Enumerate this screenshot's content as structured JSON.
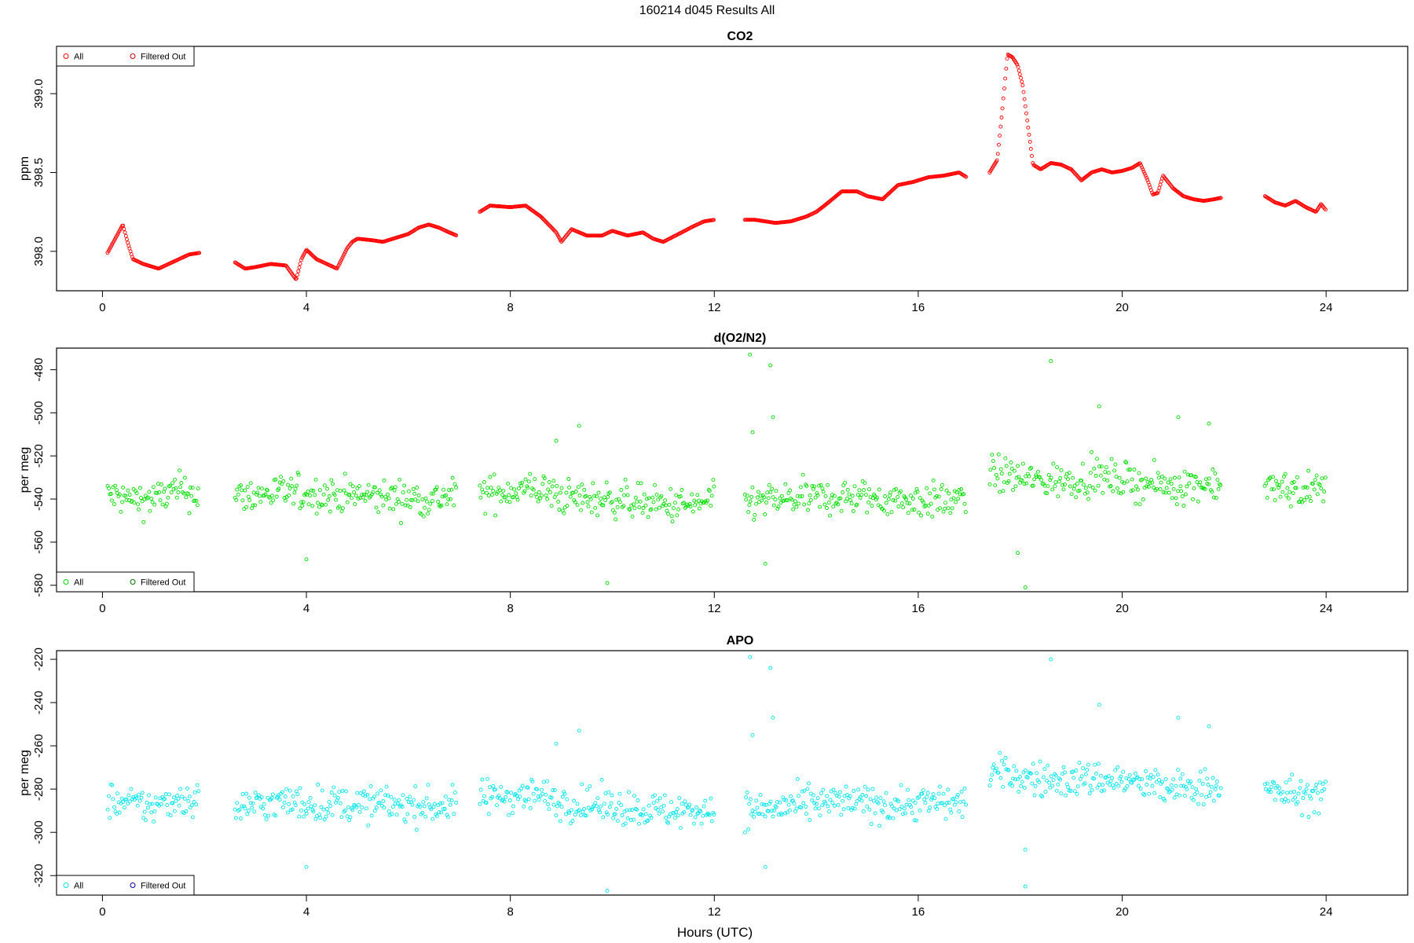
{
  "figure": {
    "title": "160214   d045   Results All",
    "xlabel": "Hours (UTC)"
  },
  "chart_data": [
    {
      "type": "scatter",
      "title": "CO2",
      "ylabel": "ppm",
      "xlim": [
        -0.9,
        25.6
      ],
      "ylim": [
        397.75,
        399.3
      ],
      "xticks": [
        0,
        4,
        8,
        12,
        16,
        20,
        24
      ],
      "yticks": [
        398.0,
        398.5,
        399.0
      ],
      "ytick_labels": [
        "398.0",
        "398.5",
        "399.0"
      ],
      "grid": false,
      "legend": {
        "position": "top-left",
        "entries": [
          {
            "label": "All",
            "color": "#ff0000"
          },
          {
            "label": "Filtered Out",
            "color": "#cc0000"
          }
        ]
      },
      "series": [
        {
          "name": "All",
          "color": "#ff0000",
          "segments": [
            {
              "x": [
                0.1,
                0.25,
                0.4,
                0.5,
                0.6,
                0.8,
                1.0,
                1.1,
                1.3,
                1.5,
                1.7,
                1.9
              ],
              "y": [
                397.99,
                398.08,
                398.17,
                398.05,
                397.95,
                397.92,
                397.9,
                397.89,
                397.92,
                397.95,
                397.98,
                397.99
              ]
            },
            {
              "x": [
                2.6,
                2.8,
                3.0,
                3.3,
                3.6,
                3.8,
                3.9,
                4.0,
                4.2,
                4.4,
                4.6,
                4.8,
                4.9,
                5.0,
                5.3,
                5.5,
                5.8,
                6.0,
                6.2,
                6.4,
                6.6,
                6.8,
                6.95
              ],
              "y": [
                397.93,
                397.89,
                397.9,
                397.92,
                397.91,
                397.82,
                397.95,
                398.01,
                397.95,
                397.92,
                397.89,
                398.02,
                398.06,
                398.08,
                398.07,
                398.06,
                398.09,
                398.11,
                398.15,
                398.17,
                398.15,
                398.12,
                398.1
              ]
            },
            {
              "x": [
                7.4,
                7.6,
                8.0,
                8.3,
                8.6,
                8.9,
                9.0,
                9.2,
                9.5,
                9.8,
                10.0,
                10.3,
                10.6,
                10.8,
                11.0,
                11.3,
                11.6,
                11.8,
                12.0
              ],
              "y": [
                398.25,
                398.29,
                398.28,
                398.29,
                398.22,
                398.12,
                398.06,
                398.14,
                398.1,
                398.1,
                398.13,
                398.1,
                398.12,
                398.08,
                398.06,
                398.11,
                398.16,
                398.19,
                398.2
              ]
            },
            {
              "x": [
                12.6,
                12.8,
                13.0,
                13.2,
                13.5,
                13.8,
                14.0,
                14.2,
                14.5,
                14.8,
                15.0,
                15.3,
                15.6,
                15.9,
                16.2,
                16.5,
                16.8,
                16.95
              ],
              "y": [
                398.2,
                398.2,
                398.19,
                398.18,
                398.19,
                398.22,
                398.25,
                398.3,
                398.38,
                398.38,
                398.35,
                398.33,
                398.42,
                398.44,
                398.47,
                398.48,
                398.5,
                398.47
              ]
            },
            {
              "x": [
                17.4,
                17.55,
                17.65,
                17.75,
                17.85,
                17.95,
                18.05,
                18.15,
                18.25,
                18.4,
                18.6,
                18.8,
                19.0,
                19.2,
                19.4,
                19.6,
                19.8,
                20.0,
                20.2,
                20.35,
                20.5,
                20.6,
                20.7,
                20.8,
                21.0,
                21.2,
                21.4,
                21.6,
                21.8,
                21.95
              ],
              "y": [
                398.5,
                398.58,
                398.9,
                399.25,
                399.23,
                399.18,
                399.05,
                398.8,
                398.55,
                398.52,
                398.56,
                398.55,
                398.52,
                398.45,
                398.5,
                398.52,
                398.5,
                398.51,
                398.53,
                398.56,
                398.45,
                398.36,
                398.37,
                398.48,
                398.4,
                398.35,
                398.33,
                398.32,
                398.33,
                398.34
              ]
            },
            {
              "x": [
                22.8,
                23.0,
                23.2,
                23.4,
                23.6,
                23.8,
                23.9,
                24.0
              ],
              "y": [
                398.35,
                398.31,
                398.29,
                398.32,
                398.28,
                398.25,
                398.3,
                398.26
              ]
            }
          ]
        }
      ]
    },
    {
      "type": "scatter",
      "title": "d(O2/N2)",
      "ylabel": "per meg",
      "xlim": [
        -0.9,
        25.6
      ],
      "ylim": [
        -583,
        -470
      ],
      "xticks": [
        0,
        4,
        8,
        12,
        16,
        20,
        24
      ],
      "yticks": [
        -580,
        -560,
        -540,
        -520,
        -500,
        -480
      ],
      "ytick_labels": [
        "-580",
        "-560",
        "-540",
        "-520",
        "-500",
        "-480"
      ],
      "grid": false,
      "legend": {
        "position": "bottom-left",
        "entries": [
          {
            "label": "All",
            "color": "#00dd00"
          },
          {
            "label": "Filtered Out",
            "color": "#007700"
          }
        ]
      },
      "series": [
        {
          "name": "All",
          "color": "#00dd00",
          "segments": [
            {
              "x": [
                0.1,
                0.5,
                1.0,
                1.5,
                1.9
              ],
              "y": [
                -538,
                -540,
                -540,
                -536,
                -538
              ]
            },
            {
              "x": [
                2.6,
                3.5,
                4.5,
                5.5,
                6.5,
                6.95
              ],
              "y": [
                -539,
                -537,
                -538,
                -539,
                -540,
                -538
              ]
            },
            {
              "x": [
                7.4,
                8.0,
                8.5,
                9.0,
                9.5,
                10.0,
                10.5,
                11.0,
                11.5,
                12.0
              ],
              "y": [
                -538,
                -536,
                -535,
                -539,
                -540,
                -540,
                -541,
                -543,
                -543,
                -541
              ]
            },
            {
              "x": [
                12.6,
                13.5,
                14.5,
                15.5,
                16.5,
                16.95
              ],
              "y": [
                -542,
                -540,
                -539,
                -540,
                -541,
                -540
              ]
            },
            {
              "x": [
                17.4,
                18.0,
                18.5,
                19.0,
                19.5,
                20.0,
                20.5,
                21.0,
                21.5,
                21.95
              ],
              "y": [
                -528,
                -530,
                -532,
                -531,
                -530,
                -531,
                -533,
                -534,
                -533,
                -532
              ]
            },
            {
              "x": [
                22.8,
                23.5,
                24.0
              ],
              "y": [
                -535,
                -536,
                -535
              ]
            }
          ],
          "noise": 7,
          "outliers": {
            "x": [
              12.7,
              13.1,
              18.6,
              19.55,
              21.1,
              21.7,
              9.35,
              8.9,
              12.75,
              13.15,
              18.1,
              9.9,
              13.0,
              17.95,
              4.0
            ],
            "y": [
              -473,
              -478,
              -476,
              -497,
              -502,
              -505,
              -506,
              -513,
              -509,
              -502,
              -581,
              -579,
              -570,
              -565,
              -568
            ]
          }
        }
      ]
    },
    {
      "type": "scatter",
      "title": "APO",
      "ylabel": "per meg",
      "xlim": [
        -0.9,
        25.6
      ],
      "ylim": [
        -329,
        -216
      ],
      "xticks": [
        0,
        4,
        8,
        12,
        16,
        20,
        24
      ],
      "yticks": [
        -320,
        -300,
        -280,
        -260,
        -240,
        -220
      ],
      "ytick_labels": [
        "-320",
        "-300",
        "-280",
        "-260",
        "-240",
        "-220"
      ],
      "grid": false,
      "legend": {
        "position": "bottom-left",
        "entries": [
          {
            "label": "All",
            "color": "#00e5ee"
          },
          {
            "label": "Filtered Out",
            "color": "#0000aa"
          }
        ]
      },
      "series": [
        {
          "name": "All",
          "color": "#00e5ee",
          "segments": [
            {
              "x": [
                0.1,
                0.5,
                1.0,
                1.5,
                1.9
              ],
              "y": [
                -285,
                -287,
                -288,
                -284,
                -286
              ]
            },
            {
              "x": [
                2.6,
                3.5,
                4.5,
                5.5,
                6.5,
                6.95
              ],
              "y": [
                -288,
                -286,
                -287,
                -287,
                -288,
                -287
              ]
            },
            {
              "x": [
                7.4,
                8.0,
                8.5,
                9.0,
                9.5,
                10.0,
                10.5,
                11.0,
                11.5,
                12.0
              ],
              "y": [
                -284,
                -283,
                -282,
                -286,
                -287,
                -288,
                -289,
                -290,
                -290,
                -289
              ]
            },
            {
              "x": [
                12.6,
                13.5,
                14.5,
                15.5,
                16.5,
                16.95
              ],
              "y": [
                -290,
                -288,
                -286,
                -287,
                -286,
                -286
              ]
            },
            {
              "x": [
                17.4,
                18.0,
                18.5,
                19.0,
                19.5,
                20.0,
                20.5,
                21.0,
                21.5,
                21.95
              ],
              "y": [
                -272,
                -274,
                -276,
                -276,
                -275,
                -276,
                -278,
                -280,
                -279,
                -278
              ]
            },
            {
              "x": [
                22.8,
                23.5,
                24.0
              ],
              "y": [
                -281,
                -283,
                -282
              ]
            }
          ],
          "noise": 7,
          "outliers": {
            "x": [
              12.7,
              13.1,
              18.6,
              19.55,
              21.1,
              21.7,
              9.35,
              8.9,
              12.75,
              13.15,
              18.1,
              9.9,
              13.0,
              18.1,
              4.0
            ],
            "y": [
              -219,
              -224,
              -220,
              -241,
              -247,
              -251,
              -253,
              -259,
              -255,
              -247,
              -325,
              -327,
              -316,
              -308,
              -316
            ]
          }
        }
      ]
    }
  ]
}
